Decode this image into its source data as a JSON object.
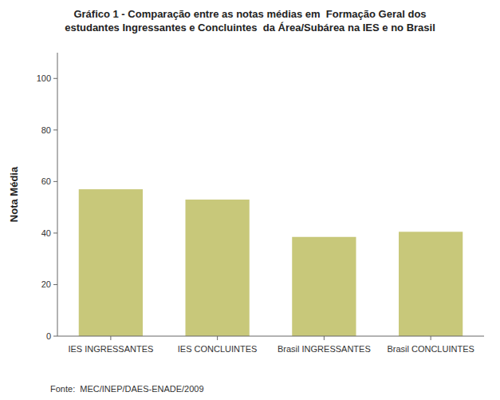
{
  "chart_data": {
    "type": "bar",
    "title": "Gráfico 1 - Comparação entre as notas médias em  Formação Geral dos\nestudantes Ingressantes e Concluintes  da Área/Subárea na IES e no Brasil",
    "categories": [
      "IES INGRESSANTES",
      "IES CONCLUINTES",
      "Brasil INGRESSANTES",
      "Brasil CONCLUINTES"
    ],
    "values": [
      57.0,
      53.0,
      38.5,
      40.5
    ],
    "color": "#c8c87a",
    "ylabel": "Nota Média",
    "ylim": [
      0,
      110
    ],
    "yticks": [
      0,
      20,
      40,
      60,
      80,
      100
    ],
    "grid": false,
    "annotations": [
      "Fonte:  MEC/INEP/DAES-ENADE/2009"
    ]
  }
}
